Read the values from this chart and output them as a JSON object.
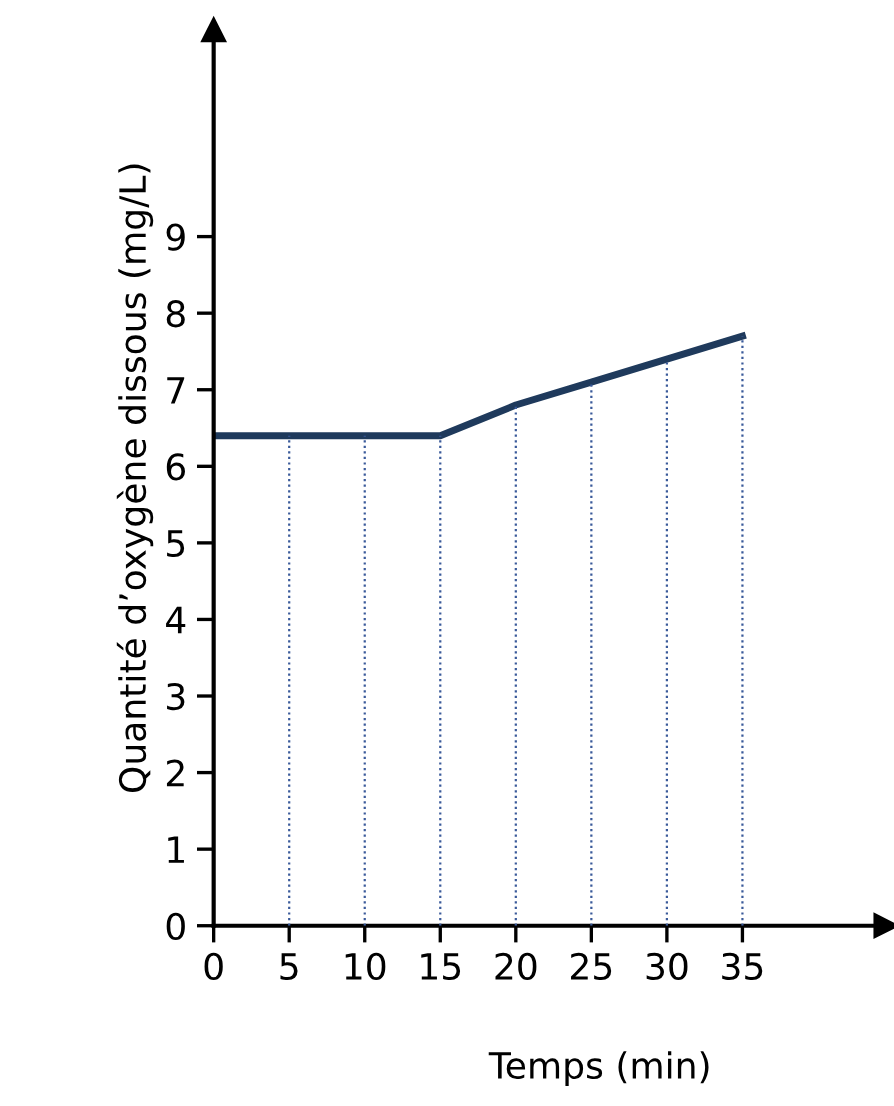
{
  "chart_data": {
    "type": "line",
    "xlabel": "Temps (min)",
    "ylabel": "Quantité d’oxygène dissous (mg/L)",
    "x": [
      0,
      5,
      10,
      15,
      20,
      25,
      30,
      35
    ],
    "series": [
      {
        "color": "#1f3a5c",
        "values": [
          6.4,
          6.4,
          6.4,
          6.4,
          6.8,
          7.1,
          7.4,
          7.7
        ],
        "errors": [
          null,
          [
            0,
            6.4
          ],
          [
            0,
            6.4
          ],
          [
            0,
            6.4
          ],
          [
            0,
            6.8
          ],
          [
            0,
            7.1
          ],
          [
            0,
            7.4
          ],
          [
            0,
            7.7
          ]
        ]
      }
    ],
    "xlim": [
      0,
      44.5
    ],
    "ylim": [
      0,
      11.7
    ],
    "xticks": [
      0,
      5,
      10,
      15,
      20,
      25,
      30,
      35
    ],
    "yticks": [
      0,
      1,
      2,
      3,
      4,
      5,
      6,
      7,
      8,
      9
    ],
    "grid": false,
    "legend": false,
    "marker": "none",
    "line_style": "solid"
  }
}
